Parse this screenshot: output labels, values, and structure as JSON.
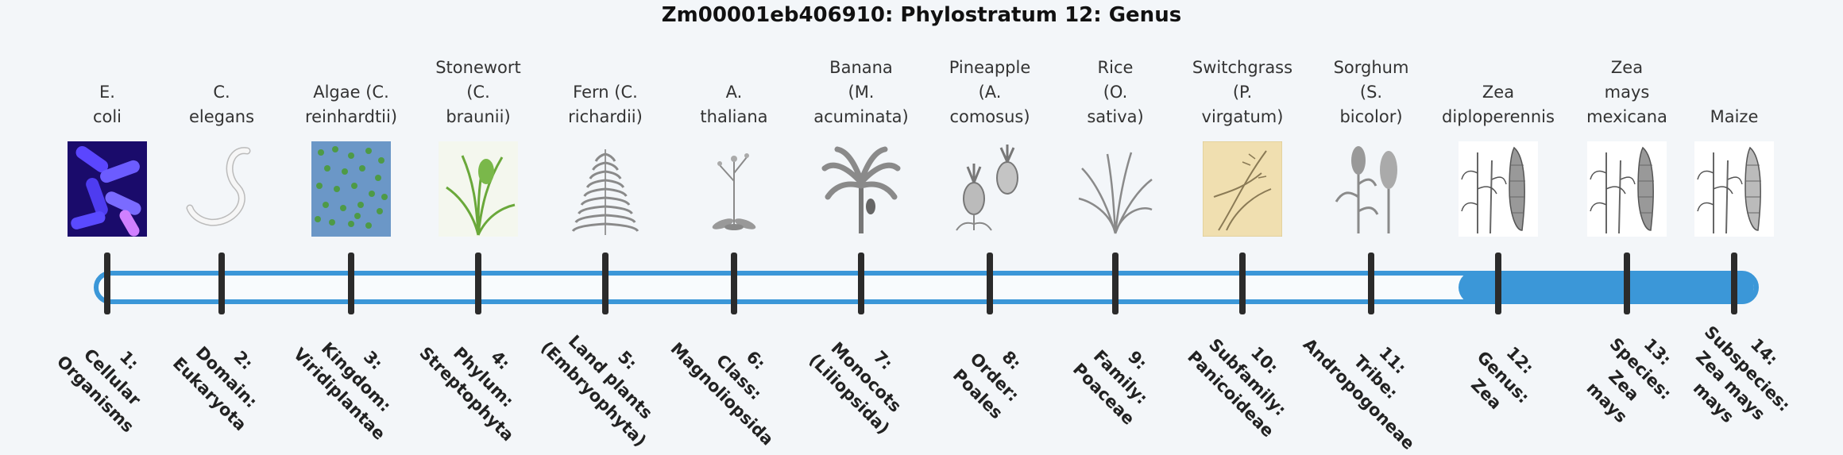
{
  "title": "Zm00001eb406910: Phylostratum 12: Genus",
  "current_stratum": 12,
  "colors": {
    "accent": "#3b97d8",
    "tick": "#2b2b2b"
  },
  "strata": [
    {
      "name_lines": [
        "E.",
        "coli"
      ],
      "icon": "ecoli-image",
      "rank_lines": [
        "1:",
        "Cellular",
        "Organisms"
      ]
    },
    {
      "name_lines": [
        "C.",
        "elegans"
      ],
      "icon": "nematode-image",
      "rank_lines": [
        "2:",
        "Domain:",
        "Eukaryota"
      ]
    },
    {
      "name_lines": [
        "Algae (C.",
        "reinhardtii)"
      ],
      "icon": "algae-image",
      "rank_lines": [
        "3:",
        "Kingdom:",
        "Viridiplantae"
      ]
    },
    {
      "name_lines": [
        "Stonewort",
        "(C.",
        "braunii)"
      ],
      "icon": "stonewort-image",
      "rank_lines": [
        "4:",
        "Phylum:",
        "Streptophyta"
      ]
    },
    {
      "name_lines": [
        "Fern (C.",
        "richardii)"
      ],
      "icon": "fern-image",
      "rank_lines": [
        "5:",
        "Land plants",
        "(Embryophyta)"
      ]
    },
    {
      "name_lines": [
        "A.",
        "thaliana"
      ],
      "icon": "arabidopsis-image",
      "rank_lines": [
        "6:",
        "Class:",
        "Magnoliopsida"
      ]
    },
    {
      "name_lines": [
        "Banana",
        "(M.",
        "acuminata)"
      ],
      "icon": "banana-image",
      "rank_lines": [
        "7:",
        "Monocots",
        "(Liliopsida)"
      ]
    },
    {
      "name_lines": [
        "Pineapple",
        "(A.",
        "comosus)"
      ],
      "icon": "pineapple-image",
      "rank_lines": [
        "8:",
        "Order:",
        "Poales"
      ]
    },
    {
      "name_lines": [
        "Rice",
        "(O.",
        "sativa)"
      ],
      "icon": "rice-image",
      "rank_lines": [
        "9:",
        "Family:",
        "Poaceae"
      ]
    },
    {
      "name_lines": [
        "Switchgrass",
        "(P.",
        "virgatum)"
      ],
      "icon": "switchgrass-image",
      "rank_lines": [
        "10:",
        "Subfamily:",
        "Panicoideae"
      ]
    },
    {
      "name_lines": [
        "Sorghum",
        "(S.",
        "bicolor)"
      ],
      "icon": "sorghum-image",
      "rank_lines": [
        "11:",
        "Tribe:",
        "Andropogoneae"
      ]
    },
    {
      "name_lines": [
        "Zea",
        "diploperennis"
      ],
      "icon": "zea-diploperennis-image",
      "rank_lines": [
        "12:",
        "Genus:",
        "Zea"
      ]
    },
    {
      "name_lines": [
        "Zea",
        "mays",
        "mexicana"
      ],
      "icon": "zea-mexicana-image",
      "rank_lines": [
        "13:",
        "Species:",
        "Zea",
        "mays"
      ]
    },
    {
      "name_lines": [
        "Maize"
      ],
      "icon": "maize-image",
      "rank_lines": [
        "14:",
        "Subspecies:",
        "Zea mays",
        "mays"
      ]
    }
  ]
}
